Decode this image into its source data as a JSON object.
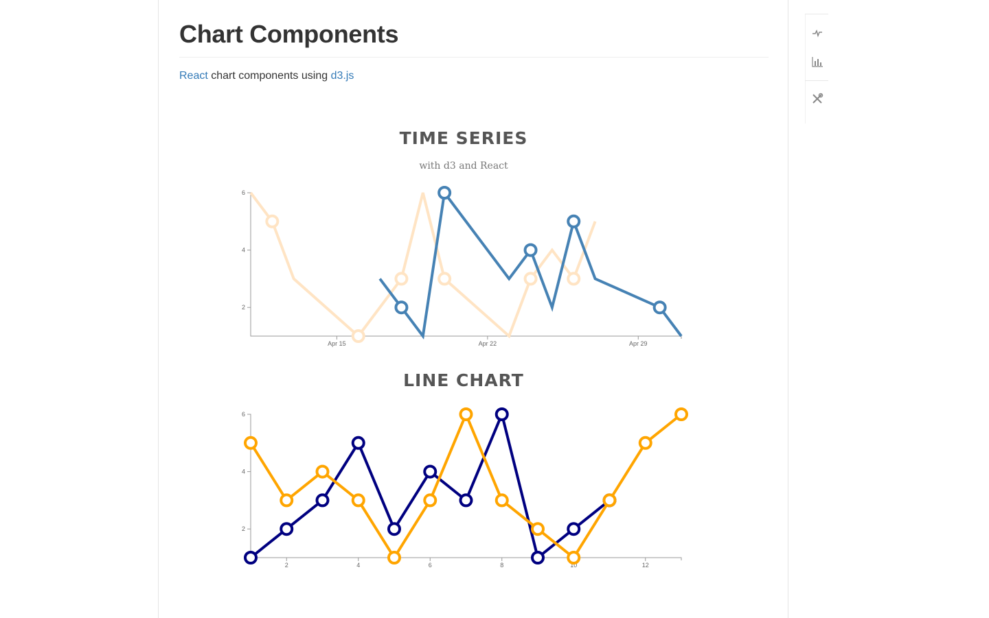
{
  "page": {
    "title": "Chart Components",
    "intro": {
      "link1": "React",
      "middle": " chart components using ",
      "link2": "d3.js"
    }
  },
  "toolbar": {
    "icons": [
      "line-chart-icon",
      "bar-chart-icon",
      "tools-icon"
    ]
  },
  "colors": {
    "series_blue": "#4682b4",
    "series_light": "#ffe4c4",
    "series_navy": "#000080",
    "series_orange": "#ffa500",
    "link": "#337ab7"
  },
  "chart_data": [
    {
      "type": "line",
      "title": "TIME SERIES",
      "subtitle": "with d3 and React",
      "x_axis": {
        "type": "date",
        "ticks": [
          "Apr 15",
          "Apr 22",
          "Apr 29"
        ],
        "range": [
          "2015-04-11",
          "2015-05-01"
        ]
      },
      "ylim": [
        1,
        6
      ],
      "y_ticks": [
        2,
        4,
        6
      ],
      "series": [
        {
          "color": "#ffe4c4",
          "points": [
            {
              "x": "2015-04-11",
              "y": 6,
              "marker": false
            },
            {
              "x": "2015-04-12",
              "y": 5,
              "marker": true
            },
            {
              "x": "2015-04-13",
              "y": 3,
              "marker": false
            },
            {
              "x": "2015-04-16",
              "y": 1,
              "marker": true
            },
            {
              "x": "2015-04-18",
              "y": 3,
              "marker": true
            },
            {
              "x": "2015-04-19",
              "y": 6,
              "marker": false
            },
            {
              "x": "2015-04-20",
              "y": 3,
              "marker": true
            },
            {
              "x": "2015-04-23",
              "y": 1,
              "marker": false
            },
            {
              "x": "2015-04-24",
              "y": 3,
              "marker": true
            },
            {
              "x": "2015-04-25",
              "y": 4,
              "marker": false
            },
            {
              "x": "2015-04-26",
              "y": 3,
              "marker": true
            },
            {
              "x": "2015-04-27",
              "y": 5,
              "marker": false
            }
          ]
        },
        {
          "color": "#4682b4",
          "points": [
            {
              "x": "2015-04-17",
              "y": 3,
              "marker": false
            },
            {
              "x": "2015-04-18",
              "y": 2,
              "marker": true
            },
            {
              "x": "2015-04-19",
              "y": 1,
              "marker": false
            },
            {
              "x": "2015-04-20",
              "y": 6,
              "marker": true
            },
            {
              "x": "2015-04-23",
              "y": 3,
              "marker": false
            },
            {
              "x": "2015-04-24",
              "y": 4,
              "marker": true
            },
            {
              "x": "2015-04-25",
              "y": 2,
              "marker": false
            },
            {
              "x": "2015-04-26",
              "y": 5,
              "marker": true
            },
            {
              "x": "2015-04-27",
              "y": 3,
              "marker": false
            },
            {
              "x": "2015-04-30",
              "y": 2,
              "marker": true
            },
            {
              "x": "2015-05-01",
              "y": 1,
              "marker": false
            }
          ]
        }
      ]
    },
    {
      "type": "line",
      "title": "LINE CHART",
      "x_axis": {
        "type": "linear",
        "range": [
          1,
          13
        ],
        "ticks": [
          2,
          4,
          6,
          8,
          10,
          12
        ]
      },
      "ylim": [
        1,
        6
      ],
      "y_ticks": [
        2,
        4,
        6
      ],
      "series": [
        {
          "color": "#000080",
          "x": [
            1,
            2,
            3,
            4,
            5,
            6,
            7,
            8,
            9,
            10,
            11
          ],
          "values": [
            1,
            2,
            3,
            5,
            2,
            4,
            3,
            6,
            1,
            2,
            3
          ]
        },
        {
          "color": "#ffa500",
          "x": [
            1,
            2,
            3,
            4,
            5,
            6,
            7,
            8,
            9,
            10,
            11,
            12,
            13
          ],
          "values": [
            5,
            3,
            4,
            3,
            1,
            3,
            6,
            3,
            2,
            1,
            3,
            5,
            6
          ]
        }
      ]
    }
  ]
}
